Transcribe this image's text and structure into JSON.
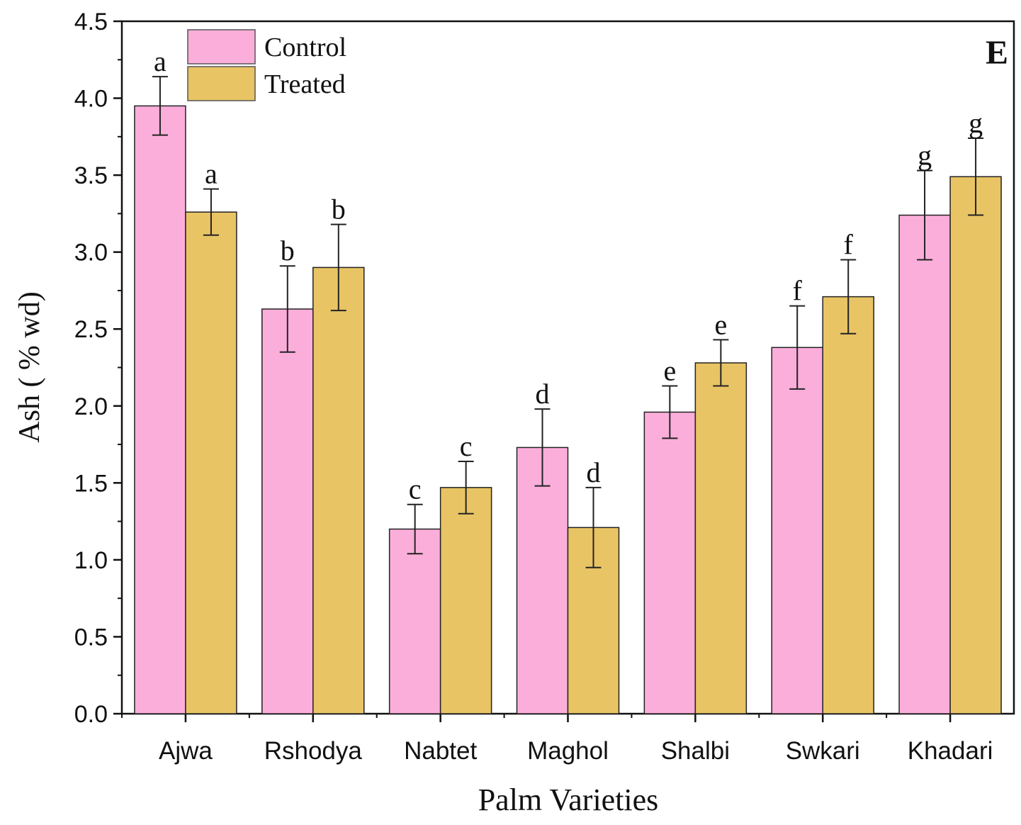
{
  "chart_data": {
    "type": "bar",
    "panel_label": "E",
    "xlabel": "Palm Varieties",
    "ylabel": "Ash ( % wd)",
    "ylim": [
      0,
      4.5
    ],
    "yticks": [
      "0.0",
      "0.5",
      "1.0",
      "1.5",
      "2.0",
      "2.5",
      "3.0",
      "3.5",
      "4.0",
      "4.5"
    ],
    "categories": [
      "Ajwa",
      "Rshodya",
      "Nabtet",
      "Maghol",
      "Shalbi",
      "Swkari",
      "Khadari"
    ],
    "series": [
      {
        "name": "Control",
        "color": "#fcaedb",
        "values": [
          3.95,
          2.63,
          1.2,
          1.73,
          1.96,
          2.38,
          3.24
        ],
        "errors": [
          0.19,
          0.28,
          0.16,
          0.25,
          0.17,
          0.27,
          0.29
        ],
        "letters": [
          "a",
          "b",
          "c",
          "d",
          "e",
          "f",
          "g"
        ]
      },
      {
        "name": "Treated",
        "color": "#e9c465",
        "values": [
          3.26,
          2.9,
          1.47,
          1.21,
          2.28,
          2.71,
          3.49
        ],
        "errors": [
          0.15,
          0.28,
          0.17,
          0.26,
          0.15,
          0.24,
          0.25
        ],
        "letters": [
          "a",
          "b",
          "c",
          "d",
          "e",
          "f",
          "g"
        ]
      }
    ],
    "legend": {
      "position": "top-left",
      "entries": [
        "Control",
        "Treated"
      ]
    }
  }
}
